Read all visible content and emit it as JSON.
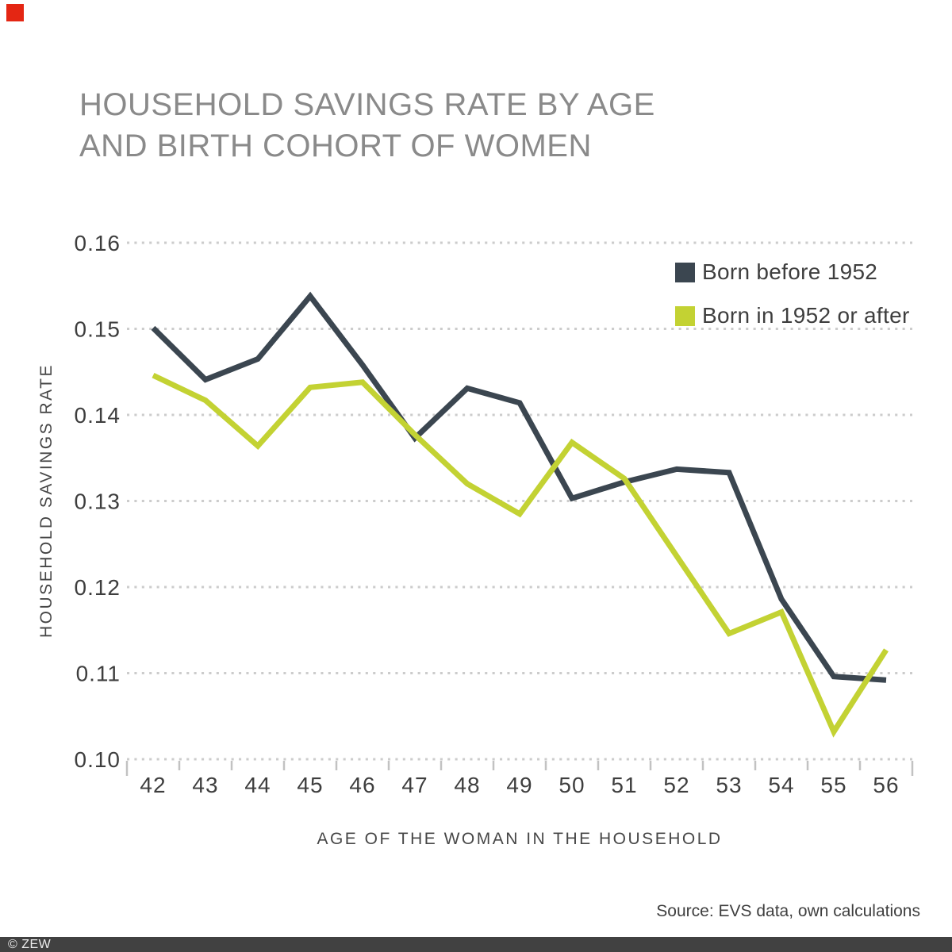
{
  "branding": {
    "corner_square_color": "#e42613",
    "footer_bar_color": "#414141"
  },
  "title": {
    "line1": "HOUSEHOLD SAVINGS RATE BY AGE",
    "line2": "AND BIRTH COHORT OF WOMEN"
  },
  "source": {
    "text": "Source: EVS data, own calculations"
  },
  "footer": {
    "copyright": "© ZEW"
  },
  "chart_data": {
    "type": "line",
    "title": "HOUSEHOLD SAVINGS RATE BY AGE AND BIRTH COHORT OF WOMEN",
    "xlabel": "AGE OF THE WOMAN IN THE HOUSEHOLD",
    "ylabel": "HOUSEHOLD SAVINGS RATE",
    "categories": [
      42,
      43,
      44,
      45,
      46,
      47,
      48,
      49,
      50,
      51,
      52,
      53,
      54,
      55,
      56
    ],
    "series": [
      {
        "name": "Born before 1952",
        "color": "#3b4650",
        "values": [
          0.1501,
          0.1441,
          0.1465,
          0.1538,
          0.1458,
          0.1373,
          0.1431,
          0.1414,
          0.1303,
          0.1322,
          0.1337,
          0.1333,
          0.1186,
          0.1096,
          0.1092
        ]
      },
      {
        "name": "Born in 1952 or after",
        "color": "#c3d233",
        "values": [
          0.1446,
          0.1417,
          0.1364,
          0.1432,
          0.1438,
          0.1377,
          0.132,
          0.1285,
          0.1368,
          0.1326,
          0.1236,
          0.1146,
          0.1171,
          0.1032,
          0.1127
        ]
      }
    ],
    "ylim": [
      0.1,
      0.16
    ],
    "yticks": [
      "0.16",
      "0.15",
      "0.14",
      "0.13",
      "0.12",
      "0.11",
      "0.10"
    ],
    "grid": "horizontal dotted",
    "grid_color": "#cccccc",
    "tick_label_color": "#3e3e3e",
    "legend_position": "top-right inside"
  }
}
